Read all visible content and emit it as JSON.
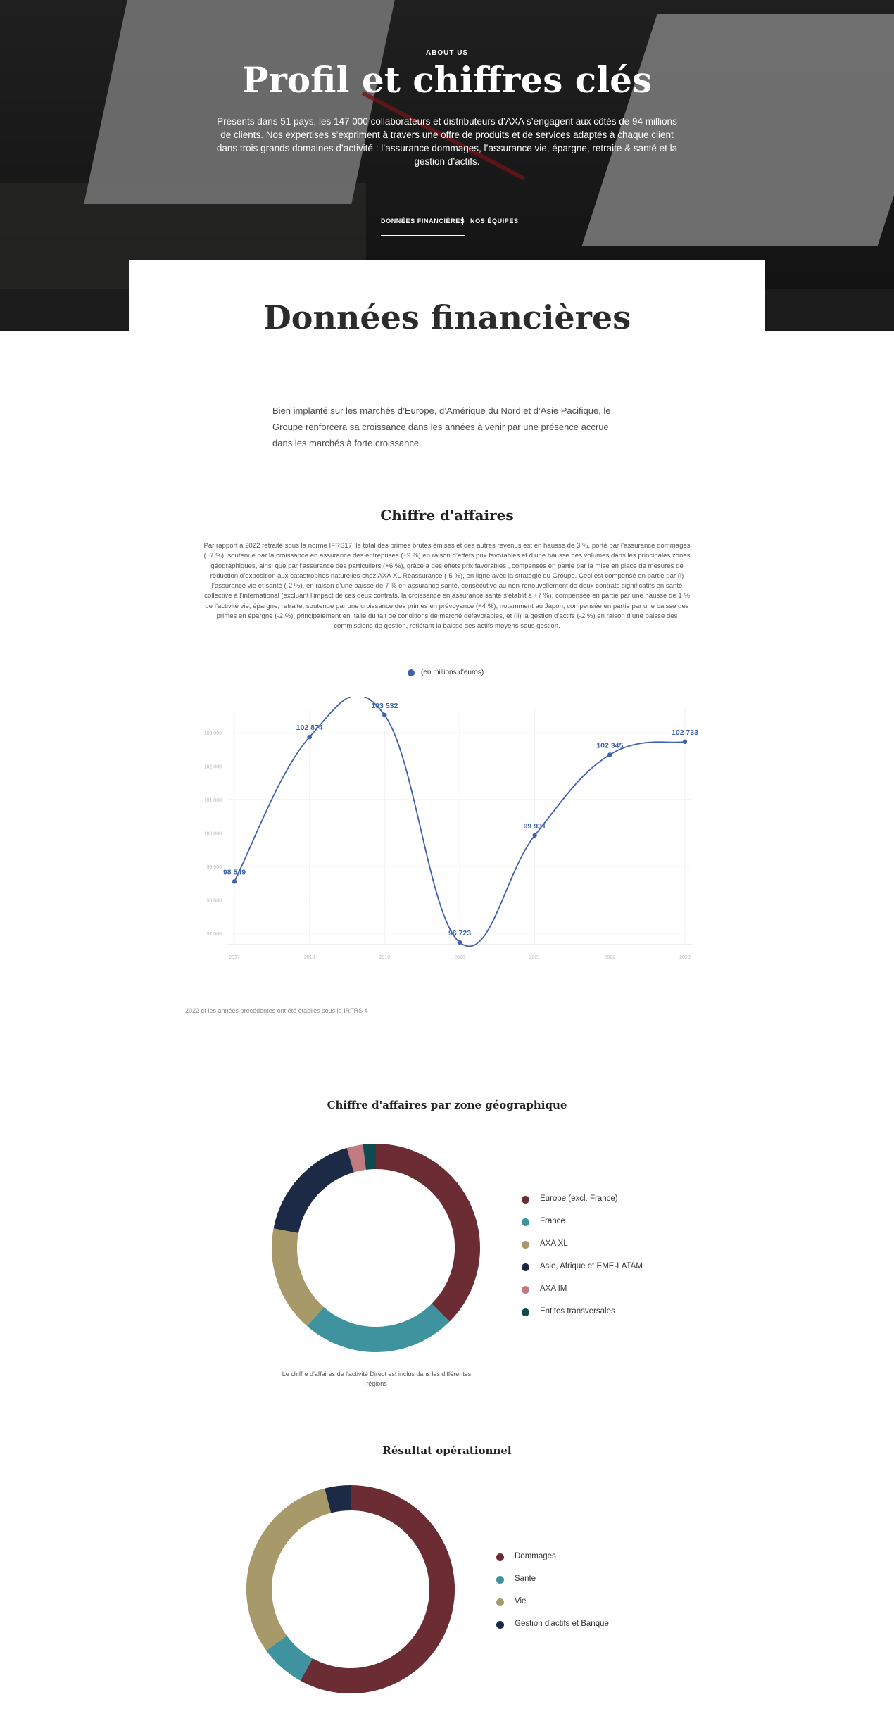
{
  "hero": {
    "eyebrow": "ABOUT US",
    "title": "Profil et chiffres clés",
    "description": "Présents dans 51 pays, les 147 000 collaborateurs et distributeurs d’AXA s’engagent aux côtés de 94 millions de clients. Nos expertises s’expriment à travers une offre de produits et de services adaptés à chaque client dans trois grands domaines d’activité : l’assurance dommages, l’assurance vie, épargne, retraite & santé et la gestion d’actifs.",
    "tabs": [
      {
        "label": "DONNÉES FINANCIÈRES",
        "active": true
      },
      {
        "label": "NOS ÉQUIPES",
        "active": false
      }
    ]
  },
  "section": {
    "title": "Données financières",
    "intro": "Bien implanté sur les marchés d’Europe, d’Amérique du Nord et d’Asie Pacifique, le Groupe renforcera sa croissance dans les années à venir par une présence accrue dans les marchés à forte croissance."
  },
  "revenue": {
    "title": "Chiffre d'affaires",
    "description": "Par rapport à 2022 retraité sous la norme IFRS17, le total des primes brutes émises et des autres revenus est en hausse de 3 %, porté par l’assurance dommages (+7 %), soutenue par la croissance en assurance des entreprises (+9 %) en raison d’effets prix favorables et d’une hausse des volumes dans les principales zones géographiques, ainsi que par l’assurance des particuliers (+6 %), grâce à des effets prix favorables , compensés en partie par la mise en place de mesures de réduction d’exposition aux catastrophes naturelles chez AXA XL Réassurance (-5 %), en ligne avec la stratégie du Groupe. Ceci est compensé en partie par (i) l’assurance vie et santé (-2 %), en raison d’une baisse de 7 % en assurance santé, consécutive au non-renouvellement de deux contrats significatifs en santé collective à l’international (excluant l’impact de ces deux contrats, la croissance en assurance santé s’établit à +7 %), compensée en partie par une hausse de 1 % de l’activité vie, épargne, retraite, soutenue par une croissance des primes en prévoyance (+4 %), notamment au Japon, compensée en partie par une baisse des primes en épargne (-2 %), principalement en Italie du fait de conditions de marché défavorables, et (ii) la gestion d’actifs (-2 %) en raison d’une baisse des commissions de gestion, reflétant la baisse des actifs moyens sous gestion.",
    "footnote": "2022 et les années précédentes ont été établies sous la IRFRS 4"
  },
  "chart_data": [
    {
      "type": "line",
      "series": [
        {
          "name": "(en millions d'euros)",
          "values": [
            98549,
            102874,
            103532,
            96723,
            99931,
            102345,
            102733
          ]
        }
      ],
      "x": [
        "2017",
        "2018",
        "2019",
        "2020",
        "2021",
        "2022",
        "2023"
      ],
      "data_labels": [
        "98 549",
        "102 874",
        "103 532",
        "96 723",
        "99 931",
        "102 345",
        "102 733"
      ],
      "y_ticks": [
        97000,
        98000,
        99000,
        100000,
        101000,
        102000,
        103000
      ],
      "y_tick_labels": [
        "97 000",
        "98 000",
        "99 000",
        "100 000",
        "101 000",
        "102 000",
        "103 000"
      ],
      "ylim": [
        96700,
        103700
      ],
      "grid": true,
      "legend": "top-center",
      "color": "#3e62ad"
    },
    {
      "type": "pie",
      "title": "Chiffre d'affaires par zone géographique",
      "categories": [
        "Europe (excl. France)",
        "France",
        "AXA XL",
        "Asie, Afrique et EME-LATAM",
        "AXA IM",
        "Entites transversales"
      ],
      "values": [
        37.5,
        24.0,
        16.5,
        17.5,
        2.5,
        2.0
      ],
      "colors": [
        "#6b2c34",
        "#3f939f",
        "#a8996a",
        "#1c2a45",
        "#c07a80",
        "#0e4a4f"
      ],
      "note": "Le chiffre d'affaires de l'activité Direct est inclus dans les différentes régions",
      "legend": "right"
    },
    {
      "type": "pie",
      "title": "Résultat opérationnel",
      "categories": [
        "Dommages",
        "Sante",
        "Vie",
        "Gestion d'actifs et Banque"
      ],
      "values": [
        58.0,
        7.0,
        31.0,
        4.0
      ],
      "colors": [
        "#6b2c34",
        "#3f939f",
        "#a8996a",
        "#1c2a45"
      ],
      "legend": "right"
    }
  ]
}
